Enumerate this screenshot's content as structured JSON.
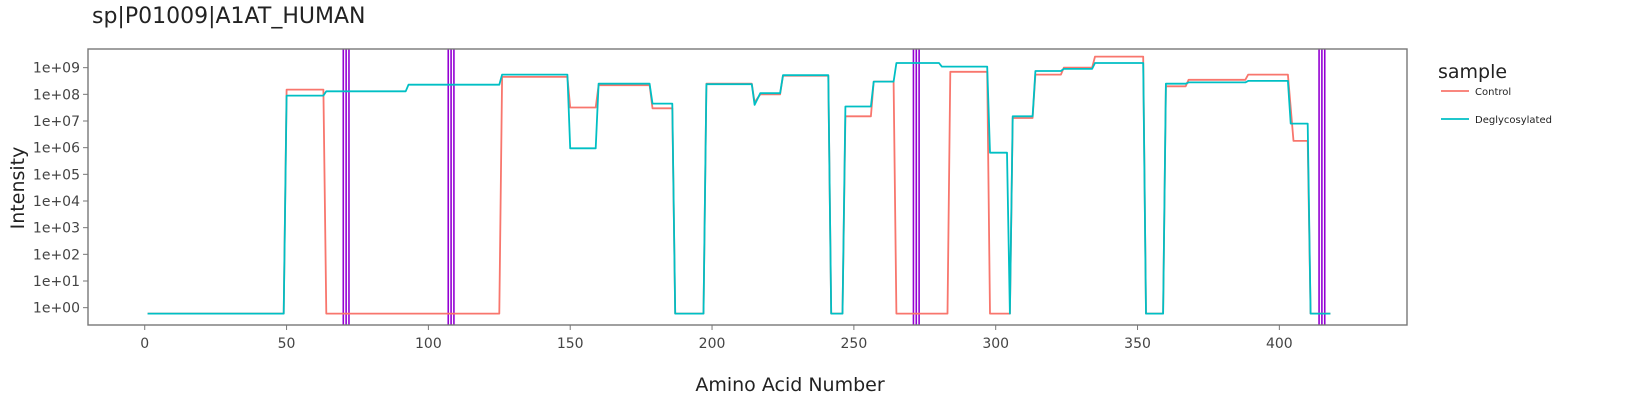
{
  "chart_data": {
    "type": "line",
    "title": "sp|P01009|A1AT_HUMAN",
    "xlabel": "Amino Acid Number",
    "ylabel": "Intensity",
    "xlim": [
      -20,
      445
    ],
    "ylim_log10": [
      -0.65,
      9.7
    ],
    "y_scale": "log",
    "x_ticks": [
      0,
      50,
      100,
      150,
      200,
      250,
      300,
      350,
      400
    ],
    "y_ticks": [
      {
        "exp": 0,
        "label": "1e+00"
      },
      {
        "exp": 1,
        "label": "1e+01"
      },
      {
        "exp": 2,
        "label": "1e+02"
      },
      {
        "exp": 3,
        "label": "1e+03"
      },
      {
        "exp": 4,
        "label": "1e+04"
      },
      {
        "exp": 5,
        "label": "1e+05"
      },
      {
        "exp": 6,
        "label": "1e+06"
      },
      {
        "exp": 7,
        "label": "1e+07"
      },
      {
        "exp": 8,
        "label": "1e+08"
      },
      {
        "exp": 9,
        "label": "1e+09"
      }
    ],
    "grid": false,
    "legend": {
      "title": "sample",
      "position": "right"
    },
    "vlines": [
      70,
      71,
      72,
      107,
      108,
      109,
      271,
      272,
      273,
      414,
      415,
      416
    ],
    "vline_color": "#9400D3",
    "series": [
      {
        "name": "Control",
        "color": "#F8766D",
        "points": [
          [
            1,
            0.6
          ],
          [
            49,
            0.6
          ],
          [
            50,
            150000000
          ],
          [
            63,
            150000000
          ],
          [
            64,
            0.6
          ],
          [
            125,
            0.6
          ],
          [
            126,
            450000000
          ],
          [
            149,
            450000000
          ],
          [
            150,
            32000000
          ],
          [
            159,
            32000000
          ],
          [
            160,
            220000000
          ],
          [
            178,
            220000000
          ],
          [
            179,
            30000000
          ],
          [
            186,
            30000000
          ],
          [
            187,
            0.6
          ],
          [
            197,
            0.6
          ],
          [
            198,
            250000000
          ],
          [
            214,
            250000000
          ],
          [
            215,
            50000000
          ],
          [
            217,
            100000000
          ],
          [
            224,
            100000000
          ],
          [
            225,
            500000000
          ],
          [
            241,
            500000000
          ],
          [
            242,
            0.6
          ],
          [
            246,
            0.6
          ],
          [
            247,
            15000000
          ],
          [
            256,
            15000000
          ],
          [
            257,
            300000000
          ],
          [
            264,
            300000000
          ],
          [
            265,
            0.6
          ],
          [
            283,
            0.6
          ],
          [
            284,
            700000000
          ],
          [
            297,
            700000000
          ],
          [
            298,
            0.6
          ],
          [
            305,
            0.6
          ],
          [
            306,
            13000000
          ],
          [
            313,
            13000000
          ],
          [
            314,
            550000000
          ],
          [
            323,
            550000000
          ],
          [
            324,
            1000000000
          ],
          [
            334,
            1000000000
          ],
          [
            335,
            2600000000
          ],
          [
            352,
            2600000000
          ],
          [
            353,
            0.6
          ],
          [
            359,
            0.6
          ],
          [
            360,
            200000000
          ],
          [
            367,
            200000000
          ],
          [
            368,
            350000000
          ],
          [
            388,
            350000000
          ],
          [
            389,
            550000000
          ],
          [
            403,
            550000000
          ],
          [
            405,
            1800000
          ],
          [
            410,
            1800000
          ],
          [
            411,
            0.6
          ],
          [
            418,
            0.6
          ]
        ]
      },
      {
        "name": "Deglycosylated",
        "color": "#00BFC4",
        "points": [
          [
            1,
            0.6
          ],
          [
            49,
            0.6
          ],
          [
            50,
            90000000
          ],
          [
            63,
            90000000
          ],
          [
            64,
            130000000
          ],
          [
            92,
            130000000
          ],
          [
            93,
            230000000
          ],
          [
            125,
            230000000
          ],
          [
            126,
            550000000
          ],
          [
            149,
            550000000
          ],
          [
            150,
            950000
          ],
          [
            159,
            950000
          ],
          [
            160,
            250000000
          ],
          [
            178,
            250000000
          ],
          [
            179,
            45000000
          ],
          [
            186,
            45000000
          ],
          [
            187,
            0.6
          ],
          [
            197,
            0.6
          ],
          [
            198,
            240000000
          ],
          [
            214,
            240000000
          ],
          [
            215,
            40000000
          ],
          [
            217,
            110000000
          ],
          [
            224,
            110000000
          ],
          [
            225,
            520000000
          ],
          [
            241,
            520000000
          ],
          [
            242,
            0.6
          ],
          [
            246,
            0.6
          ],
          [
            247,
            35000000
          ],
          [
            256,
            35000000
          ],
          [
            257,
            300000000
          ],
          [
            264,
            300000000
          ],
          [
            265,
            1500000000
          ],
          [
            280,
            1500000000
          ],
          [
            281,
            1100000000
          ],
          [
            297,
            1100000000
          ],
          [
            298,
            650000
          ],
          [
            304,
            650000
          ],
          [
            305,
            0.6
          ],
          [
            306,
            15000000
          ],
          [
            313,
            15000000
          ],
          [
            314,
            750000000
          ],
          [
            323,
            750000000
          ],
          [
            324,
            900000000
          ],
          [
            334,
            900000000
          ],
          [
            335,
            1500000000
          ],
          [
            352,
            1500000000
          ],
          [
            353,
            0.6
          ],
          [
            359,
            0.6
          ],
          [
            360,
            250000000
          ],
          [
            367,
            250000000
          ],
          [
            368,
            280000000
          ],
          [
            388,
            280000000
          ],
          [
            389,
            320000000
          ],
          [
            403,
            320000000
          ],
          [
            404,
            8000000
          ],
          [
            410,
            8000000
          ],
          [
            411,
            0.6
          ],
          [
            418,
            0.6
          ]
        ]
      }
    ]
  }
}
